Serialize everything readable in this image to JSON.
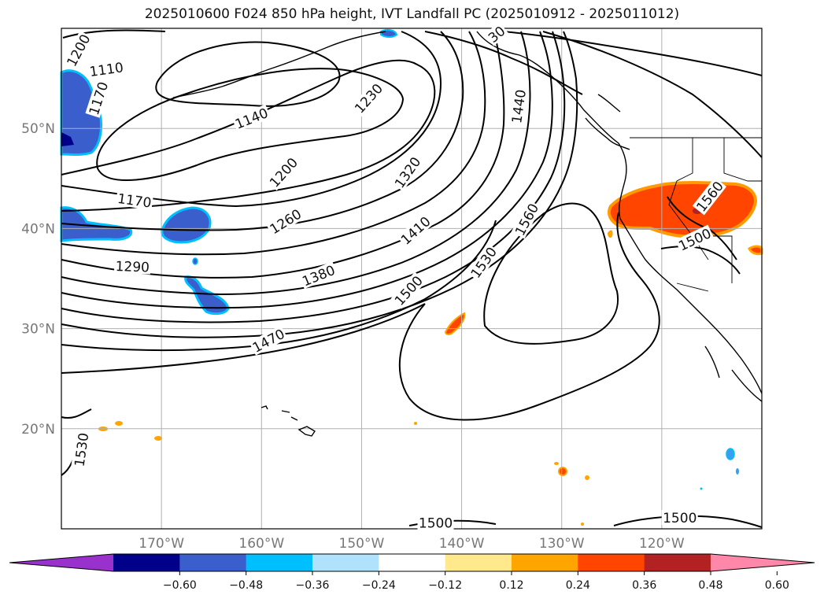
{
  "title": "2025010600 F024 850 hPa height, IVT Landfall PC (2025010912 - 2025011012)",
  "map": {
    "extent": {
      "lon": [
        -180,
        -110
      ],
      "lat": [
        10,
        60
      ]
    },
    "lat_ticks": [
      {
        "value": 50,
        "label": "50°N"
      },
      {
        "value": 40,
        "label": "40°N"
      },
      {
        "value": 30,
        "label": "30°N"
      },
      {
        "value": 20,
        "label": "20°N"
      }
    ],
    "lon_ticks": [
      {
        "value": -170,
        "label": "170°W"
      },
      {
        "value": -160,
        "label": "160°W"
      },
      {
        "value": -150,
        "label": "150°W"
      },
      {
        "value": -140,
        "label": "140°W"
      },
      {
        "value": -130,
        "label": "130°W"
      },
      {
        "value": -120,
        "label": "120°W"
      }
    ],
    "grid": true,
    "contour_color": "#000000",
    "contour_labels": [
      {
        "text": "1110",
        "lon": -175.5,
        "lat": 55.9,
        "angle": -8
      },
      {
        "text": "1200",
        "lon": -178.3,
        "lat": 57.8,
        "angle": -62
      },
      {
        "text": "1170",
        "lon": -176.3,
        "lat": 53.0,
        "angle": -72
      },
      {
        "text": "1140",
        "lon": -161.0,
        "lat": 51.0,
        "angle": -22
      },
      {
        "text": "1200",
        "lon": -157.8,
        "lat": 45.6,
        "angle": -48
      },
      {
        "text": "1170",
        "lon": -172.7,
        "lat": 42.8,
        "angle": 8
      },
      {
        "text": "1230",
        "lon": -149.3,
        "lat": 53.0,
        "angle": -48
      },
      {
        "text": "1260",
        "lon": -157.6,
        "lat": 40.7,
        "angle": -32
      },
      {
        "text": "1290",
        "lon": -172.9,
        "lat": 36.2,
        "angle": 2
      },
      {
        "text": "1320",
        "lon": -145.4,
        "lat": 45.6,
        "angle": -55
      },
      {
        "text": "1380",
        "lon": -154.3,
        "lat": 35.3,
        "angle": -22
      },
      {
        "text": "1410",
        "lon": -144.6,
        "lat": 39.8,
        "angle": -42
      },
      {
        "text": "1440",
        "lon": -134.3,
        "lat": 52.2,
        "angle": -82
      },
      {
        "text": "1500",
        "lon": -145.3,
        "lat": 33.8,
        "angle": -48
      },
      {
        "text": "1530",
        "lon": -137.8,
        "lat": 36.6,
        "angle": -55
      },
      {
        "text": "1560",
        "lon": -133.5,
        "lat": 40.9,
        "angle": -62
      },
      {
        "text": "1470",
        "lon": -159.3,
        "lat": 28.8,
        "angle": -28
      },
      {
        "text": "1530",
        "lon": -178.0,
        "lat": 17.9,
        "angle": -82
      },
      {
        "text": "1500",
        "lon": -142.6,
        "lat": 10.6,
        "angle": 0
      },
      {
        "text": "1500",
        "lon": -118.2,
        "lat": 11.1,
        "angle": 0
      },
      {
        "text": "1560",
        "lon": -115.2,
        "lat": 43.2,
        "angle": -52
      },
      {
        "text": "1500",
        "lon": -116.7,
        "lat": 38.9,
        "angle": -25
      },
      {
        "text": "30",
        "lon": -136.5,
        "lat": 59.4,
        "angle": -40
      }
    ],
    "fill_regions": [
      {
        "name": "west-coast-positive",
        "color": "#ff4500",
        "outline": "#ff9a00"
      },
      {
        "name": "pacific-negative-north",
        "color": "#3a5fcd",
        "outline": "#00bfff"
      },
      {
        "name": "pacific-negative-mid",
        "color": "#3a5fcd",
        "outline": "#00bfff"
      }
    ]
  },
  "colorbar": {
    "ticks": [
      "−0.60",
      "−0.48",
      "−0.36",
      "−0.24",
      "−0.12",
      "0.12",
      "0.24",
      "0.36",
      "0.48",
      "0.60"
    ],
    "colors": [
      "#9932cc",
      "#00008b",
      "#3a5fcd",
      "#00bfff",
      "#afe2fc",
      "#ffffff",
      "#ffe98c",
      "#ffa500",
      "#ff4500",
      "#b22222",
      "#ff88aa"
    ],
    "extend": "both"
  }
}
